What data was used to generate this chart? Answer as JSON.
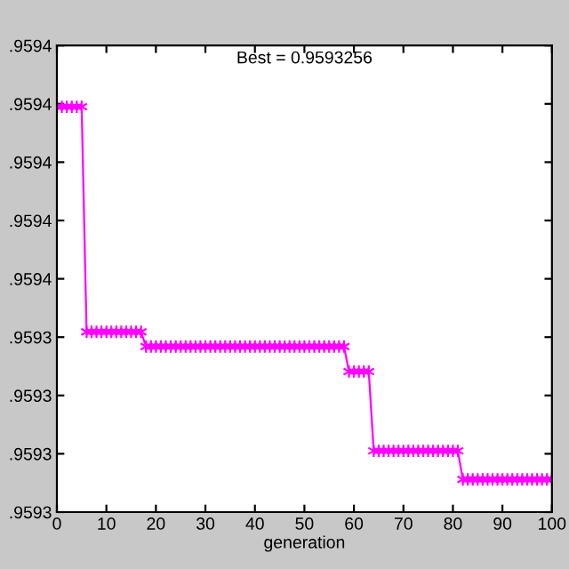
{
  "chart_data": {
    "type": "line",
    "title": "Best = 0.9593256",
    "xlabel": "generation",
    "x": [
      0,
      1,
      2,
      3,
      4,
      5,
      6,
      7,
      8,
      9,
      10,
      11,
      12,
      13,
      14,
      15,
      16,
      17,
      18,
      19,
      20,
      21,
      22,
      23,
      24,
      25,
      26,
      27,
      28,
      29,
      30,
      31,
      32,
      33,
      34,
      35,
      36,
      37,
      38,
      39,
      40,
      41,
      42,
      43,
      44,
      45,
      46,
      47,
      48,
      49,
      50,
      51,
      52,
      53,
      54,
      55,
      56,
      57,
      58,
      59,
      60,
      61,
      62,
      63,
      64,
      65,
      66,
      67,
      68,
      69,
      70,
      71,
      72,
      73,
      74,
      75,
      76,
      77,
      78,
      79,
      80,
      81,
      82,
      83,
      84,
      85,
      86,
      87,
      88,
      89,
      90,
      91,
      92,
      93,
      94,
      95,
      96,
      97,
      98,
      99,
      100
    ],
    "series": [
      {
        "color": "#ff00ff",
        "values": [
          0.9593895,
          0.9593895,
          0.9593895,
          0.9593895,
          0.9593895,
          0.9593895,
          0.9593509,
          0.9593509,
          0.9593509,
          0.9593509,
          0.9593509,
          0.9593509,
          0.9593509,
          0.9593509,
          0.9593509,
          0.9593509,
          0.9593509,
          0.9593509,
          0.9593484,
          0.9593484,
          0.9593484,
          0.9593484,
          0.9593484,
          0.9593484,
          0.9593484,
          0.9593484,
          0.9593484,
          0.9593484,
          0.9593484,
          0.9593484,
          0.9593484,
          0.9593484,
          0.9593484,
          0.9593484,
          0.9593484,
          0.9593484,
          0.9593484,
          0.9593484,
          0.9593484,
          0.9593484,
          0.9593484,
          0.9593484,
          0.9593484,
          0.9593484,
          0.9593484,
          0.9593484,
          0.9593484,
          0.9593484,
          0.9593484,
          0.9593484,
          0.9593484,
          0.9593484,
          0.9593484,
          0.9593484,
          0.9593484,
          0.9593484,
          0.9593484,
          0.9593484,
          0.9593484,
          0.9593441,
          0.9593441,
          0.9593441,
          0.9593441,
          0.9593441,
          0.9593305,
          0.9593305,
          0.9593305,
          0.9593305,
          0.9593305,
          0.9593305,
          0.9593305,
          0.9593305,
          0.9593305,
          0.9593305,
          0.9593305,
          0.9593305,
          0.9593305,
          0.9593305,
          0.9593305,
          0.9593305,
          0.9593305,
          0.9593305,
          0.9593256,
          0.9593256,
          0.9593256,
          0.9593256,
          0.9593256,
          0.9593256,
          0.9593256,
          0.9593256,
          0.9593256,
          0.9593256,
          0.9593256,
          0.9593256,
          0.9593256,
          0.9593256,
          0.9593256,
          0.9593256,
          0.9593256,
          0.9593256,
          0.9593256
        ]
      }
    ],
    "xlim": [
      0,
      100
    ],
    "xticks": [
      0,
      10,
      20,
      30,
      40,
      50,
      60,
      70,
      80,
      90,
      100
    ],
    "ylim": [
      0.95932,
      0.9594
    ],
    "yticks": [
      {
        "value": 0.95932,
        "label": ".9593"
      },
      {
        "value": 0.95933,
        "label": ".9593"
      },
      {
        "value": 0.95934,
        "label": ".9593"
      },
      {
        "value": 0.95935,
        "label": ".9593"
      },
      {
        "value": 0.95936,
        "label": ".9594"
      },
      {
        "value": 0.95937,
        "label": ".9594"
      },
      {
        "value": 0.95938,
        "label": ".9594"
      },
      {
        "value": 0.95939,
        "label": ".9594"
      },
      {
        "value": 0.9594,
        "label": ".9594"
      }
    ],
    "marker": "cross",
    "line_style": "solid",
    "grid": false,
    "legend": false
  }
}
